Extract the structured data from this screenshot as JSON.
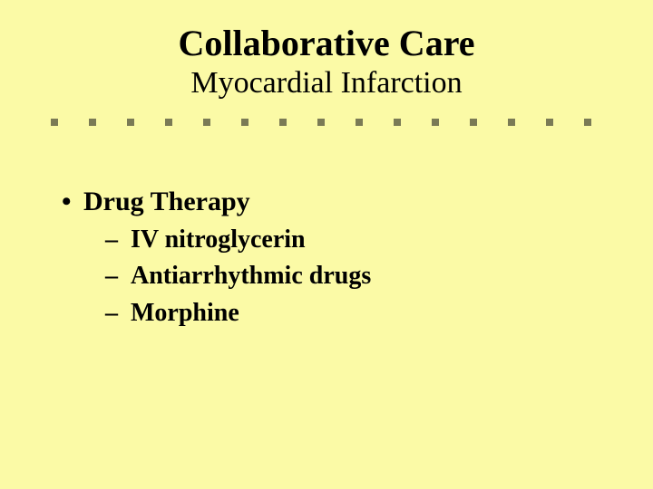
{
  "slide": {
    "title": "Collaborative Care",
    "subtitle": "Myocardial Infarction",
    "bullet": {
      "label": "Drug Therapy",
      "subitems": [
        "IV nitroglycerin",
        "Antiarrhythmic drugs",
        "Morphine"
      ]
    }
  },
  "style": {
    "background_color": "#fbfaa6",
    "text_color": "#000000",
    "font_family": "Times New Roman, serif",
    "title_fontsize_pt": 40,
    "subtitle_fontsize_pt": 34,
    "bullet_fontsize_pt": 30,
    "subbullet_fontsize_pt": 28,
    "divider": {
      "color": "#7a7a55",
      "tick_count": 15,
      "tick_width": 8,
      "tick_height": 8,
      "spacing": 42
    }
  }
}
